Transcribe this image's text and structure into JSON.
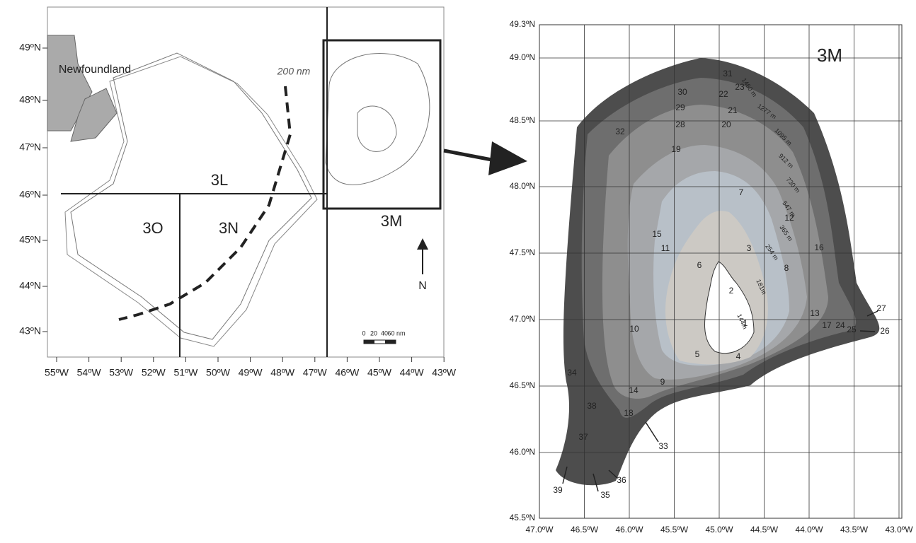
{
  "left_map": {
    "lat_labels": [
      "49ºN",
      "48ºN",
      "47ºN",
      "46ºN",
      "45ºN",
      "44ºN",
      "43ºN"
    ],
    "lon_labels": [
      "55ºW",
      "54ºW",
      "53ºW",
      "52ºW",
      "51ºW",
      "50ºW",
      "49ºW",
      "48ºW",
      "47ºW",
      "46ºW",
      "45ºW",
      "44ºW",
      "43ºW"
    ],
    "land_label": "Newfoundland",
    "eez_label": "200 nm",
    "divisions": [
      "3L",
      "3O",
      "3N",
      "3M"
    ],
    "north": "N",
    "scale_labels": [
      "0",
      "20",
      "40",
      "60 nm"
    ]
  },
  "right_map": {
    "division": "3M",
    "lat_labels": [
      "49.3ºN",
      "49.0ºN",
      "48.5ºN",
      "48.0ºN",
      "47.5ºN",
      "47.0ºN",
      "46.5ºN",
      "46.0ºN",
      "45.5ºN"
    ],
    "lon_labels": [
      "47.0ºW",
      "46.5ºW",
      "46.0ºW",
      "45.5ºW",
      "45.0ºW",
      "44.5ºW",
      "44.0ºW",
      "43.5ºW",
      "43.0ºW"
    ],
    "strata": [
      "1",
      "2",
      "3",
      "4",
      "5",
      "6",
      "7",
      "8",
      "9",
      "10",
      "11",
      "12",
      "13",
      "14",
      "15",
      "16",
      "17",
      "18",
      "19",
      "20",
      "21",
      "22",
      "23",
      "24",
      "25",
      "26",
      "27",
      "28",
      "29",
      "30",
      "31",
      "32",
      "33",
      "34",
      "35",
      "36",
      "37",
      "38",
      "39"
    ],
    "depths": [
      "1460 m",
      "1277 m",
      "1095 m",
      "912 m",
      "730 m",
      "547 m",
      "365 m",
      "254 m",
      "181m",
      "144m"
    ]
  }
}
